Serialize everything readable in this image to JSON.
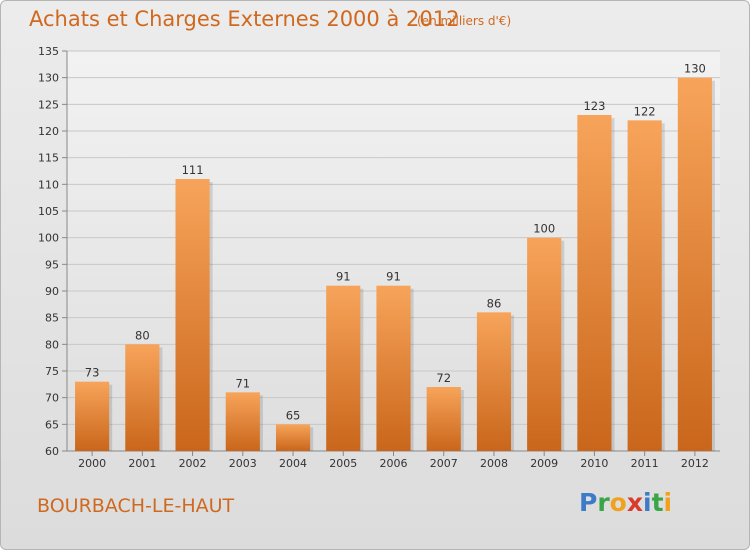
{
  "chart_data": {
    "type": "bar",
    "title": "Achats et Charges Externes 2000 à 2012",
    "unit_label": "(en milliers d'€)",
    "categories": [
      "2000",
      "2001",
      "2002",
      "2003",
      "2004",
      "2005",
      "2006",
      "2007",
      "2008",
      "2009",
      "2010",
      "2011",
      "2012"
    ],
    "values": [
      73,
      80,
      111,
      71,
      65,
      91,
      91,
      72,
      86,
      100,
      123,
      122,
      130
    ],
    "ylim": [
      60,
      135
    ],
    "yticks": [
      60,
      65,
      70,
      75,
      80,
      85,
      90,
      95,
      100,
      105,
      110,
      115,
      120,
      125,
      130,
      135
    ],
    "grid": true,
    "bar_color_top": "#f7a45a",
    "bar_color_bottom": "#c9661b"
  },
  "footer": {
    "town": "BOURBACH-LE-HAUT",
    "logo_letters": [
      "P",
      "r",
      "o",
      "x",
      "i",
      "t",
      "i"
    ]
  }
}
